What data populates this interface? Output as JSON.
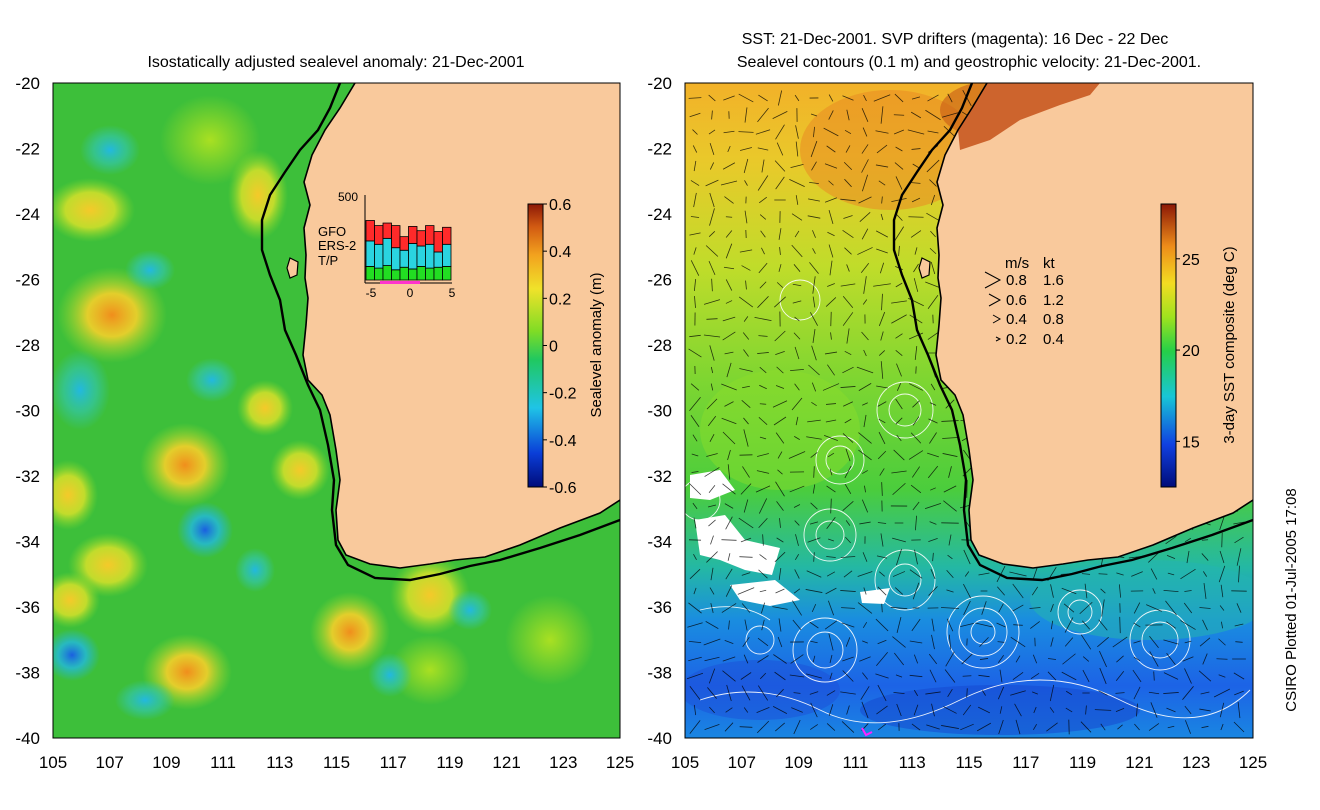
{
  "left_panel": {
    "title": "Isostatically adjusted sealevel anomaly: 21-Dec-2001",
    "colorbar_label": "Sealevel anomaly (m)",
    "colorbar_ticks": [
      "0.6",
      "0.4",
      "0.2",
      "0",
      "-0.2",
      "-0.4",
      "-0.6"
    ],
    "colorbar_range": [
      -0.6,
      0.6
    ],
    "inset": {
      "ymax_label": "500",
      "x_ticks": [
        "-5",
        "0",
        "5"
      ],
      "legend": [
        {
          "label": "GFO",
          "color": "#ff2a2a"
        },
        {
          "label": "ERS-2",
          "color": "#2ad4e0"
        },
        {
          "label": "T/P",
          "color": "#22dd22"
        }
      ],
      "bars": [
        {
          "tp": 80,
          "ers": 150,
          "gfo": 120
        },
        {
          "tp": 70,
          "ers": 140,
          "gfo": 110
        },
        {
          "tp": 85,
          "ers": 160,
          "gfo": 90
        },
        {
          "tp": 60,
          "ers": 130,
          "gfo": 130
        },
        {
          "tp": 75,
          "ers": 100,
          "gfo": 80
        },
        {
          "tp": 65,
          "ers": 150,
          "gfo": 100
        },
        {
          "tp": 80,
          "ers": 120,
          "gfo": 90
        },
        {
          "tp": 70,
          "ers": 140,
          "gfo": 110
        },
        {
          "tp": 75,
          "ers": 90,
          "gfo": 120
        },
        {
          "tp": 80,
          "ers": 130,
          "gfo": 100
        }
      ]
    }
  },
  "right_panel": {
    "title_line1": "SST: 21-Dec-2001. SVP drifters (magenta): 16 Dec - 22 Dec",
    "title_line2": "Sealevel contours (0.1 m) and geostrophic velocity: 21-Dec-2001.",
    "colorbar_label": "3-day SST composite (deg C)",
    "colorbar_ticks": [
      "25",
      "20",
      "15"
    ],
    "colorbar_range": [
      12.5,
      28
    ],
    "velocity_legend": {
      "header_ms": "m/s",
      "header_kt": "kt",
      "rows": [
        {
          "ms": "0.8",
          "kt": "1.6"
        },
        {
          "ms": "0.6",
          "kt": "1.2"
        },
        {
          "ms": "0.4",
          "kt": "0.8"
        },
        {
          "ms": "0.2",
          "kt": "0.4"
        }
      ]
    }
  },
  "axes": {
    "lat_ticks": [
      "-20",
      "-22",
      "-24",
      "-26",
      "-28",
      "-30",
      "-32",
      "-34",
      "-36",
      "-38",
      "-40"
    ],
    "lon_ticks": [
      "105",
      "107",
      "109",
      "111",
      "113",
      "115",
      "117",
      "119",
      "121",
      "123",
      "125"
    ]
  },
  "credit": "CSIRO Plotted 01-Jul-2005 17:08",
  "colors": {
    "land": "#f9c99c",
    "ocean_base_left": "#3dbf3a",
    "ocean_base_right": "#2ed43a",
    "coast": "#000000"
  }
}
